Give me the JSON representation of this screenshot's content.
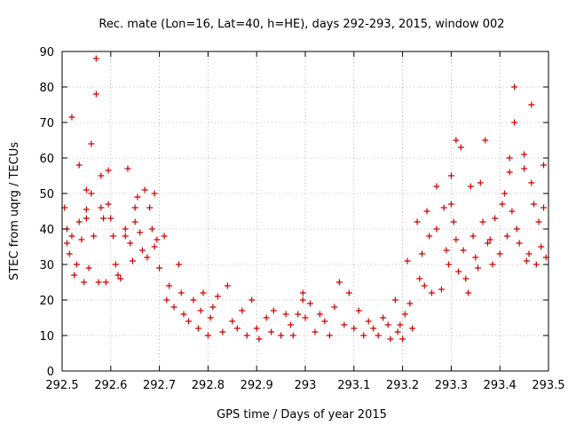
{
  "chart_data": {
    "type": "scatter",
    "title": "Rec. mate (Lon=16, Lat=40, h=HE), days 292-293, 2015, window 002",
    "xlabel": "GPS time / Days of year 2015",
    "ylabel": "STEC from uqrg / TECUs",
    "xlim": [
      292.5,
      293.5
    ],
    "ylim": [
      0,
      90
    ],
    "x_ticks": [
      292.5,
      292.6,
      292.7,
      292.8,
      292.9,
      293.0,
      293.1,
      293.2,
      293.3,
      293.4,
      293.5
    ],
    "x_tick_labels": [
      "292.5",
      "292.6",
      "292.7",
      "292.8",
      "292.9",
      "293",
      "293.1",
      "293.2",
      "293.3",
      "293.4",
      "293.5"
    ],
    "y_ticks": [
      0,
      10,
      20,
      30,
      40,
      50,
      60,
      70,
      80,
      90
    ],
    "y_tick_labels": [
      "0",
      "10",
      "20",
      "30",
      "40",
      "50",
      "60",
      "70",
      "80",
      "90"
    ],
    "grid": true,
    "marker": "+",
    "color": "#cc0000",
    "series": [
      {
        "points": [
          [
            292.505,
            46
          ],
          [
            292.51,
            40
          ],
          [
            292.51,
            36
          ],
          [
            292.515,
            33
          ],
          [
            292.52,
            71.5
          ],
          [
            292.52,
            38
          ],
          [
            292.525,
            27
          ],
          [
            292.53,
            30
          ],
          [
            292.535,
            58
          ],
          [
            292.535,
            42
          ],
          [
            292.54,
            37
          ],
          [
            292.545,
            25
          ],
          [
            292.55,
            51
          ],
          [
            292.55,
            45.5
          ],
          [
            292.55,
            43
          ],
          [
            292.555,
            29
          ],
          [
            292.56,
            64
          ],
          [
            292.56,
            50
          ],
          [
            292.565,
            38
          ],
          [
            292.57,
            88
          ],
          [
            292.57,
            78
          ],
          [
            292.575,
            25
          ],
          [
            292.58,
            55
          ],
          [
            292.58,
            46
          ],
          [
            292.585,
            43
          ],
          [
            292.59,
            25
          ],
          [
            292.595,
            56.5
          ],
          [
            292.595,
            47
          ],
          [
            292.6,
            43
          ],
          [
            292.605,
            38
          ],
          [
            292.61,
            30
          ],
          [
            292.615,
            27
          ],
          [
            292.62,
            26
          ],
          [
            292.63,
            40
          ],
          [
            292.63,
            38
          ],
          [
            292.635,
            57
          ],
          [
            292.64,
            36
          ],
          [
            292.645,
            31
          ],
          [
            292.65,
            46
          ],
          [
            292.65,
            42
          ],
          [
            292.655,
            49
          ],
          [
            292.66,
            39
          ],
          [
            292.665,
            34
          ],
          [
            292.67,
            51
          ],
          [
            292.675,
            32
          ],
          [
            292.68,
            46
          ],
          [
            292.685,
            40
          ],
          [
            292.69,
            50
          ],
          [
            292.69,
            35
          ],
          [
            292.695,
            37
          ],
          [
            292.7,
            29
          ],
          [
            292.71,
            38
          ],
          [
            292.715,
            20
          ],
          [
            292.72,
            24
          ],
          [
            292.73,
            18
          ],
          [
            292.74,
            30
          ],
          [
            292.745,
            22
          ],
          [
            292.75,
            16
          ],
          [
            292.76,
            14
          ],
          [
            292.77,
            20
          ],
          [
            292.78,
            12
          ],
          [
            292.785,
            17
          ],
          [
            292.79,
            22
          ],
          [
            292.8,
            10
          ],
          [
            292.805,
            15
          ],
          [
            292.81,
            18
          ],
          [
            292.82,
            21
          ],
          [
            292.83,
            11
          ],
          [
            292.84,
            24
          ],
          [
            292.85,
            14
          ],
          [
            292.86,
            12
          ],
          [
            292.87,
            17
          ],
          [
            292.88,
            10
          ],
          [
            292.89,
            20
          ],
          [
            292.9,
            12
          ],
          [
            292.905,
            9
          ],
          [
            292.92,
            15
          ],
          [
            292.93,
            11
          ],
          [
            292.935,
            17
          ],
          [
            292.95,
            10
          ],
          [
            292.96,
            16
          ],
          [
            292.97,
            13
          ],
          [
            292.975,
            10
          ],
          [
            292.985,
            16
          ],
          [
            292.995,
            22
          ],
          [
            292.995,
            20
          ],
          [
            293.0,
            15
          ],
          [
            293.01,
            19
          ],
          [
            293.02,
            11
          ],
          [
            293.03,
            16
          ],
          [
            293.04,
            14
          ],
          [
            293.05,
            10
          ],
          [
            293.06,
            18
          ],
          [
            293.07,
            25
          ],
          [
            293.08,
            13
          ],
          [
            293.09,
            22
          ],
          [
            293.1,
            12
          ],
          [
            293.11,
            17
          ],
          [
            293.12,
            10
          ],
          [
            293.13,
            14
          ],
          [
            293.14,
            12
          ],
          [
            293.15,
            10
          ],
          [
            293.16,
            15
          ],
          [
            293.17,
            13
          ],
          [
            293.175,
            9
          ],
          [
            293.185,
            20
          ],
          [
            293.19,
            11
          ],
          [
            293.195,
            13
          ],
          [
            293.2,
            9
          ],
          [
            293.205,
            16
          ],
          [
            293.21,
            31
          ],
          [
            293.215,
            19
          ],
          [
            293.22,
            12
          ],
          [
            293.23,
            42
          ],
          [
            293.235,
            26
          ],
          [
            293.24,
            33
          ],
          [
            293.245,
            24
          ],
          [
            293.25,
            45
          ],
          [
            293.255,
            38
          ],
          [
            293.26,
            22
          ],
          [
            293.27,
            52
          ],
          [
            293.27,
            40
          ],
          [
            293.28,
            23
          ],
          [
            293.285,
            46
          ],
          [
            293.29,
            34
          ],
          [
            293.295,
            30
          ],
          [
            293.3,
            55
          ],
          [
            293.3,
            47
          ],
          [
            293.305,
            42
          ],
          [
            293.31,
            65
          ],
          [
            293.31,
            37
          ],
          [
            293.315,
            28
          ],
          [
            293.32,
            63
          ],
          [
            293.325,
            34
          ],
          [
            293.33,
            26
          ],
          [
            293.335,
            22
          ],
          [
            293.34,
            52
          ],
          [
            293.345,
            38
          ],
          [
            293.35,
            32
          ],
          [
            293.355,
            29
          ],
          [
            293.36,
            53
          ],
          [
            293.365,
            42
          ],
          [
            293.37,
            65
          ],
          [
            293.375,
            36
          ],
          [
            293.38,
            37
          ],
          [
            293.385,
            30
          ],
          [
            293.39,
            43
          ],
          [
            293.4,
            33
          ],
          [
            293.405,
            47
          ],
          [
            293.41,
            50
          ],
          [
            293.415,
            38
          ],
          [
            293.42,
            60
          ],
          [
            293.42,
            56
          ],
          [
            293.425,
            45
          ],
          [
            293.43,
            80
          ],
          [
            293.43,
            70
          ],
          [
            293.435,
            40
          ],
          [
            293.44,
            36
          ],
          [
            293.45,
            61
          ],
          [
            293.45,
            57
          ],
          [
            293.455,
            31
          ],
          [
            293.46,
            33
          ],
          [
            293.465,
            75
          ],
          [
            293.465,
            53
          ],
          [
            293.47,
            47
          ],
          [
            293.475,
            30
          ],
          [
            293.48,
            42
          ],
          [
            293.485,
            35
          ],
          [
            293.49,
            46
          ],
          [
            293.49,
            58
          ],
          [
            293.495,
            32
          ]
        ]
      }
    ]
  }
}
